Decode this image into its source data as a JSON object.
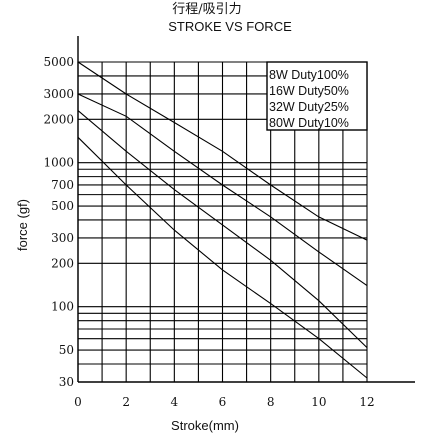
{
  "chart_data": {
    "type": "line",
    "title_cn": "行程/吸引力",
    "title": "STROKE VS FORCE",
    "xlabel": "Stroke(mm)",
    "ylabel": "force (gf)",
    "x_ticks": [
      "0",
      "2",
      "4",
      "6",
      "8",
      "10",
      "12"
    ],
    "xlim": [
      0,
      12
    ],
    "y_scale": "log",
    "y_ticks": [
      "5000",
      "3000",
      "2000",
      "1000",
      "700",
      "500",
      "300",
      "200",
      "100",
      "50",
      "30"
    ],
    "ylim": [
      30,
      5000
    ],
    "legend_position": "top-right",
    "series": [
      {
        "name": "8W Duty100%",
        "x": [
          0,
          2,
          4,
          6,
          8,
          10,
          12
        ],
        "y": [
          1500,
          700,
          340,
          180,
          105,
          60,
          32
        ]
      },
      {
        "name": "16W Duty50%",
        "x": [
          0,
          2,
          4,
          6,
          8,
          10,
          12
        ],
        "y": [
          2300,
          1200,
          650,
          370,
          210,
          110,
          52
        ]
      },
      {
        "name": "32W Duty25%",
        "x": [
          0,
          2,
          4,
          6,
          8,
          10,
          12
        ],
        "y": [
          3000,
          2100,
          1200,
          700,
          420,
          240,
          140
        ]
      },
      {
        "name": "80W Duty10%",
        "x": [
          0,
          2,
          4,
          6,
          8,
          10,
          12
        ],
        "y": [
          5000,
          3000,
          1900,
          1200,
          700,
          420,
          290
        ]
      }
    ]
  }
}
